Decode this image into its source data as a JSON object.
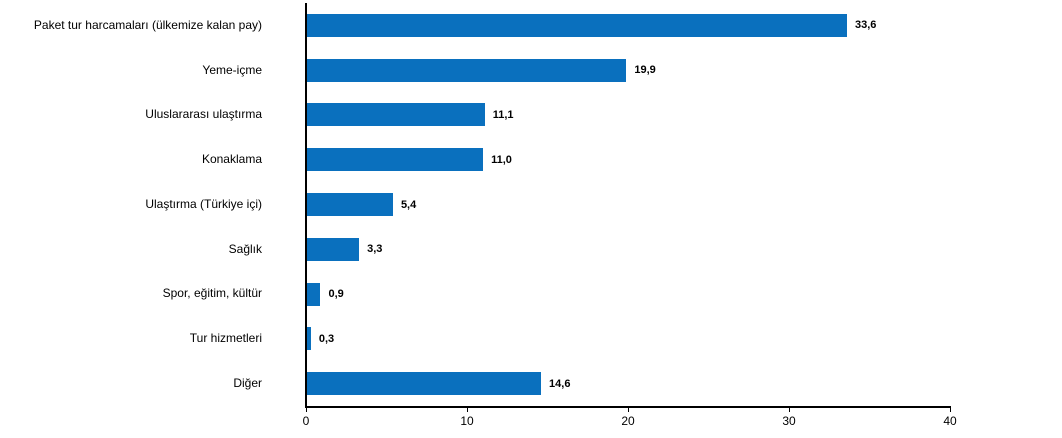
{
  "chart_data": {
    "type": "bar",
    "orientation": "horizontal",
    "title": "",
    "xlabel": "",
    "ylabel": "",
    "categories": [
      "Paket tur harcamaları (ülkemize kalan pay)",
      "Yeme-içme",
      "Uluslararası ulaştırma",
      "Konaklama",
      "Ulaştırma (Türkiye içi)",
      "Sağlık",
      "Spor, eğitim, kültür",
      "Tur hizmetleri",
      "Diğer"
    ],
    "values": [
      33.6,
      19.9,
      11.1,
      11.0,
      5.4,
      3.3,
      0.9,
      0.3,
      14.6
    ],
    "value_labels": [
      "33,6",
      "19,9",
      "11,1",
      "11,0",
      "5,4",
      "3,3",
      "0,9",
      "0,3",
      "14,6"
    ],
    "xlim": [
      0,
      40
    ],
    "x_ticks": [
      "0",
      "10",
      "20",
      "30",
      "40"
    ],
    "grid": false,
    "legend": false,
    "bar_color": "#0a70be",
    "axis_color": "#000000"
  }
}
